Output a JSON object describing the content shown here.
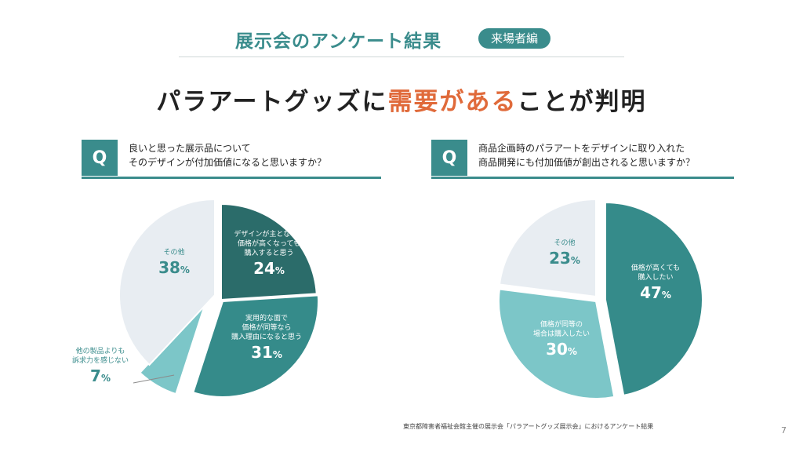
{
  "header": {
    "title": "展示会のアンケート結果",
    "badge": "来場者編"
  },
  "headline": {
    "pre": "パラアートグッズに",
    "accent": "需要がある",
    "post": "ことが判明"
  },
  "colors": {
    "teal_dark": "#2b6c6a",
    "teal": "#358b8a",
    "teal_light": "#7cc6c8",
    "grey_light": "#e8edf2",
    "accent_orange": "#e06a3a"
  },
  "chart_data": [
    {
      "type": "pie",
      "question": {
        "mark": "Q",
        "line1": "良いと思った展示品について",
        "line2": "そのデザインが付加価値になると思いますか？"
      },
      "slices": [
        {
          "label_lines": [
            "デザインが主となって",
            "価格が高くなっても",
            "購入すると思う"
          ],
          "value": 24,
          "color": "#2b6c6a"
        },
        {
          "label_lines": [
            "実用的な面で",
            "価格が同等なら",
            "購入理由になると思う"
          ],
          "value": 31,
          "color": "#358b8a"
        },
        {
          "label_lines": [
            "他の製品よりも",
            "訴求力を感じない"
          ],
          "value": 7,
          "color": "#7cc6c8"
        },
        {
          "label_lines": [
            "その他"
          ],
          "value": 38,
          "color": "#e8edf2"
        }
      ]
    },
    {
      "type": "pie",
      "question": {
        "mark": "Q",
        "line1": "商品企画時のパラアートをデザインに取り入れた",
        "line2": "商品開発にも付加価値が創出されると思いますか？"
      },
      "slices": [
        {
          "label_lines": [
            "価格が高くても",
            "購入したい"
          ],
          "value": 47,
          "color": "#358b8a"
        },
        {
          "label_lines": [
            "価格が同等の",
            "場合は購入したい"
          ],
          "value": 30,
          "color": "#7cc6c8"
        },
        {
          "label_lines": [
            "その他"
          ],
          "value": 23,
          "color": "#e8edf2"
        }
      ]
    }
  ],
  "footnote": "東京都障害者福祉会館主催の展示会「パラアートグッズ展示会」におけるアンケート結果",
  "page_number": "7",
  "pct_unit": "%"
}
